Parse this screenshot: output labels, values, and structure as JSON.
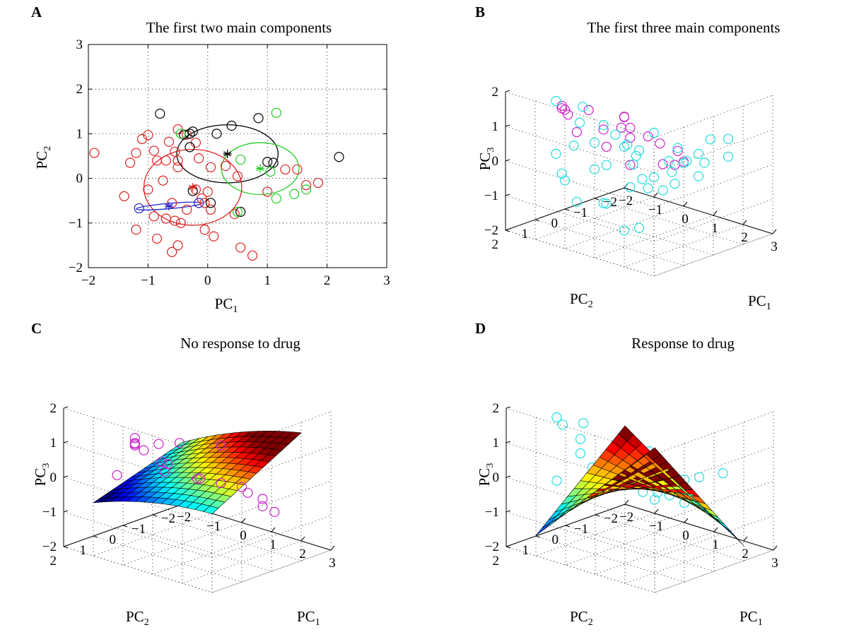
{
  "colors": {
    "red": "#dd2222",
    "black": "#000000",
    "green": "#22cc22",
    "blue": "#2222cc",
    "cyan": "#22dddd",
    "magenta": "#cc22cc"
  },
  "chart_data": [
    {
      "panel": "A",
      "type": "scatter",
      "title": "The first two main components",
      "xlabel": {
        "main": "PC",
        "sub": "1"
      },
      "ylabel": {
        "main": "PC",
        "sub": "2"
      },
      "xlim": [
        -2,
        3
      ],
      "ylim": [
        -2,
        3
      ],
      "xticks": [
        "−2",
        "−1",
        "0",
        "1",
        "2",
        "3"
      ],
      "yticks": [
        "−2",
        "−1",
        "0",
        "1",
        "2",
        "3"
      ],
      "grid": true,
      "series": [
        {
          "name": "red",
          "marker": "circle",
          "color": "#dd2222",
          "points": [
            [
              -1.9,
              0.57
            ],
            [
              -1.3,
              0.35
            ],
            [
              -1.2,
              0.57
            ],
            [
              -1.1,
              0.88
            ],
            [
              -1.0,
              0.97
            ],
            [
              -0.65,
              0.82
            ],
            [
              -0.5,
              1.1
            ],
            [
              -0.35,
              0.98
            ],
            [
              -0.55,
              0.6
            ],
            [
              -0.2,
              0.8
            ],
            [
              -0.9,
              0.62
            ],
            [
              -0.85,
              0.4
            ],
            [
              -0.7,
              0.4
            ],
            [
              -0.5,
              0.4
            ],
            [
              -0.15,
              0.45
            ],
            [
              -0.5,
              0.25
            ],
            [
              0.05,
              0.25
            ],
            [
              0.3,
              0.28
            ],
            [
              0.5,
              0.05
            ],
            [
              -1.4,
              -0.4
            ],
            [
              -1.0,
              -0.25
            ],
            [
              -0.75,
              -0.05
            ],
            [
              -0.6,
              -0.55
            ],
            [
              -0.35,
              -0.7
            ],
            [
              -0.1,
              -0.45
            ],
            [
              0.0,
              -0.3
            ],
            [
              -0.2,
              -0.25
            ],
            [
              0.05,
              -0.7
            ],
            [
              -1.2,
              -1.15
            ],
            [
              -0.9,
              -0.85
            ],
            [
              -0.7,
              -0.9
            ],
            [
              -0.55,
              -0.95
            ],
            [
              -0.85,
              -1.35
            ],
            [
              -0.45,
              -1.0
            ],
            [
              -0.05,
              -1.15
            ],
            [
              -0.6,
              -1.65
            ],
            [
              -0.5,
              -1.5
            ],
            [
              0.1,
              -1.3
            ],
            [
              0.55,
              -1.55
            ],
            [
              0.75,
              -1.73
            ],
            [
              1.0,
              -0.3
            ],
            [
              1.3,
              0.2
            ],
            [
              1.5,
              0.2
            ],
            [
              1.65,
              -0.15
            ],
            [
              1.85,
              -0.1
            ],
            [
              0.45,
              -0.8
            ],
            [
              -0.05,
              -0.55
            ]
          ]
        },
        {
          "name": "black",
          "marker": "circle",
          "color": "#000000",
          "points": [
            [
              -0.8,
              1.45
            ],
            [
              -0.25,
              1.05
            ],
            [
              -0.4,
              0.98
            ],
            [
              -0.3,
              1.0
            ],
            [
              -0.3,
              0.7
            ],
            [
              0.15,
              1.0
            ],
            [
              0.4,
              1.18
            ],
            [
              0.85,
              1.35
            ],
            [
              2.2,
              0.48
            ],
            [
              1.0,
              0.37
            ],
            [
              1.1,
              0.35
            ],
            [
              0.55,
              -0.75
            ],
            [
              -0.25,
              -0.28
            ],
            [
              0.05,
              -0.55
            ]
          ]
        },
        {
          "name": "green",
          "marker": "circle",
          "color": "#22cc22",
          "points": [
            [
              1.15,
              1.47
            ],
            [
              -0.45,
              1.0
            ],
            [
              0.55,
              0.42
            ],
            [
              1.05,
              0.15
            ],
            [
              0.5,
              -0.75
            ],
            [
              1.15,
              -0.45
            ],
            [
              1.45,
              -0.35
            ],
            [
              1.65,
              -0.25
            ]
          ]
        },
        {
          "name": "blue",
          "marker": "circle",
          "color": "#2222cc",
          "points": [
            [
              -1.15,
              -0.67
            ],
            [
              -0.15,
              -0.55
            ]
          ]
        }
      ],
      "centroids": [
        {
          "name": "black",
          "color": "#000000",
          "x": 0.33,
          "y": 0.55
        },
        {
          "name": "green",
          "color": "#22cc22",
          "x": 0.88,
          "y": 0.22
        },
        {
          "name": "red",
          "color": "#dd2222",
          "x": -0.25,
          "y": -0.2
        },
        {
          "name": "blue",
          "color": "#2222cc",
          "x": -0.65,
          "y": -0.62
        }
      ],
      "ellipses": [
        {
          "name": "black",
          "color": "#000000",
          "cx": 0.33,
          "cy": 0.55,
          "rx": 0.85,
          "ry": 0.65,
          "angle_deg": 0
        },
        {
          "name": "green",
          "color": "#22cc22",
          "cx": 0.88,
          "cy": 0.22,
          "rx": 0.65,
          "ry": 0.58,
          "angle_deg": 0
        },
        {
          "name": "red",
          "color": "#dd2222",
          "cx": -0.25,
          "cy": -0.2,
          "rx": 0.82,
          "ry": 0.85,
          "angle_deg": 0
        },
        {
          "name": "blue",
          "color": "#2222cc",
          "cx": -0.65,
          "cy": -0.62,
          "rx": 0.55,
          "ry": 0.06,
          "angle_deg": 5
        }
      ]
    },
    {
      "panel": "B",
      "type": "scatter3d",
      "title": "The first three main components",
      "xlabel": {
        "main": "PC",
        "sub": "1"
      },
      "ylabel": {
        "main": "PC",
        "sub": "2"
      },
      "zlabel": {
        "main": "PC",
        "sub": "3"
      },
      "xlim": [
        -2,
        3
      ],
      "ylim": [
        -2,
        2
      ],
      "zlim": [
        -2,
        2
      ],
      "xticks": [
        "−2",
        "−1",
        "0",
        "1",
        "2",
        "3"
      ],
      "yticks": [
        "−2",
        "−1",
        "0",
        "1",
        "2"
      ],
      "zticks": [
        "−2",
        "−1",
        "0",
        "1",
        "2"
      ],
      "series": [
        {
          "name": "magenta",
          "color": "#cc22cc",
          "points": [
            [
              -1.5,
              0.6,
              1.3
            ],
            [
              -1.2,
              0.9,
              1.4
            ],
            [
              -0.9,
              1.1,
              1.5
            ],
            [
              -0.6,
              1.3,
              1.5
            ],
            [
              0.2,
              0.2,
              1.3
            ],
            [
              0.5,
              0.3,
              1.1
            ],
            [
              -1.5,
              -0.3,
              0.9
            ],
            [
              -0.6,
              0.1,
              0.7
            ],
            [
              -0.7,
              -0.7,
              0.8
            ],
            [
              -0.9,
              -0.8,
              0.4
            ],
            [
              -0.4,
              -0.6,
              0.3
            ],
            [
              0.2,
              -0.6,
              0.5
            ],
            [
              0.6,
              -0.6,
              0.4
            ],
            [
              1.0,
              -0.3,
              0.0
            ],
            [
              0.9,
              -0.8,
              -0.2
            ],
            [
              1.3,
              -0.5,
              0.4
            ],
            [
              -1.3,
              0.3,
              0.5
            ],
            [
              0.1,
              -0.1,
              -0.2
            ],
            [
              1.6,
              -0.4,
              0.2
            ],
            [
              -0.2,
              0.4,
              0.4
            ]
          ]
        },
        {
          "name": "cyan",
          "color": "#22dddd",
          "points": [
            [
              -1.5,
              0.8,
              1.5
            ],
            [
              -1.6,
              -0.2,
              1.0
            ],
            [
              -1.2,
              0.3,
              0.8
            ],
            [
              -1.8,
              0.5,
              -0.2
            ],
            [
              -1.2,
              0.5,
              0.2
            ],
            [
              -0.8,
              0.2,
              0.3
            ],
            [
              -0.3,
              0.0,
              0.6
            ],
            [
              -0.1,
              -0.2,
              0.3
            ],
            [
              0.1,
              -0.3,
              0.0
            ],
            [
              0.3,
              0.0,
              -0.1
            ],
            [
              0.5,
              -0.1,
              -0.5
            ],
            [
              0.8,
              -0.2,
              -0.4
            ],
            [
              1.2,
              -0.4,
              -0.2
            ],
            [
              1.5,
              -0.5,
              0.1
            ],
            [
              1.8,
              -0.3,
              0.3
            ],
            [
              2.2,
              -0.5,
              0.3
            ],
            [
              2.5,
              -1.0,
              0.4
            ],
            [
              2.0,
              -0.9,
              0.8
            ],
            [
              1.0,
              0.0,
              1.0
            ],
            [
              0.3,
              0.3,
              0.5
            ],
            [
              -0.5,
              0.5,
              -0.3
            ],
            [
              -1.0,
              1.0,
              -0.6
            ],
            [
              -1.4,
              0.7,
              -0.6
            ],
            [
              0.4,
              1.0,
              -0.9
            ],
            [
              -0.2,
              0.5,
              -1.2
            ],
            [
              0.0,
              -0.2,
              -0.9
            ],
            [
              1.1,
              -0.2,
              -0.7
            ],
            [
              0.6,
              -0.9,
              -0.2
            ],
            [
              -0.3,
              -0.8,
              -0.1
            ],
            [
              0.9,
              0.1,
              -0.6
            ],
            [
              1.5,
              -0.2,
              -0.4
            ],
            [
              1.9,
              -0.6,
              -0.2
            ],
            [
              0.2,
              0.8,
              0.1
            ],
            [
              -0.4,
              1.2,
              -1.0
            ],
            [
              0.8,
              -1.0,
              0.2
            ],
            [
              1.3,
              -1.2,
              0.1
            ],
            [
              0.5,
              0.5,
              -1.8
            ],
            [
              1.0,
              0.5,
              -1.6
            ],
            [
              -1.0,
              -0.3,
              0.6
            ],
            [
              2.3,
              -1.2,
              0.8
            ]
          ]
        }
      ]
    },
    {
      "panel": "C",
      "type": "surface",
      "title": "No response to drug",
      "xlabel": {
        "main": "PC",
        "sub": "1"
      },
      "ylabel": {
        "main": "PC",
        "sub": "2"
      },
      "zlabel": {
        "main": "PC",
        "sub": "3"
      },
      "xlim": [
        -2,
        3
      ],
      "ylim": [
        -2,
        2
      ],
      "zlim": [
        -2,
        2
      ],
      "xticks": [
        "−2",
        "−1",
        "0",
        "1",
        "2",
        "3"
      ],
      "yticks": [
        "−2",
        "−1",
        "0",
        "1",
        "2"
      ],
      "zticks": [
        "−2",
        "−1",
        "0",
        "1",
        "2"
      ],
      "surface": {
        "x_range": [
          -1.5,
          2.5
        ],
        "y_range": [
          -1.5,
          1.5
        ],
        "grid": 14,
        "colormap": "jet",
        "model": "z = 0.2 + 0.3*x - 0.35*y - 0.05*x*y - 0.04*x*x",
        "clim": [
          -0.6,
          1.0
        ]
      },
      "series": [
        {
          "name": "magenta",
          "color": "#cc22cc",
          "points": [
            [
              -1.5,
              0.7,
              -0.2
            ],
            [
              -1.3,
              0.3,
              0.8
            ],
            [
              -1.0,
              0.6,
              0.8
            ],
            [
              -0.7,
              0.9,
              1.0
            ],
            [
              -0.4,
              1.2,
              1.1
            ],
            [
              0.0,
              1.3,
              1.1
            ],
            [
              0.3,
              1.1,
              1.3
            ],
            [
              0.8,
              0.9,
              1.4
            ],
            [
              1.5,
              0.2,
              1.3
            ],
            [
              -1.2,
              -0.5,
              -0.1
            ],
            [
              -0.8,
              -0.3,
              0.0
            ],
            [
              0.0,
              -0.6,
              -0.3
            ],
            [
              0.6,
              -0.7,
              -0.3
            ],
            [
              1.0,
              -1.0,
              -0.4
            ],
            [
              1.4,
              -0.8,
              -0.4
            ],
            [
              1.8,
              -0.9,
              -0.5
            ],
            [
              2.0,
              -0.7,
              -0.6
            ],
            [
              0.3,
              -0.2,
              -0.1
            ],
            [
              -0.3,
              0.3,
              0.1
            ],
            [
              1.8,
              -1.3,
              -1.0
            ]
          ]
        }
      ]
    },
    {
      "panel": "D",
      "type": "surface",
      "title": "Response to drug",
      "xlabel": {
        "main": "PC",
        "sub": "1"
      },
      "ylabel": {
        "main": "PC",
        "sub": "2"
      },
      "zlabel": {
        "main": "PC",
        "sub": "3"
      },
      "xlim": [
        -2,
        3
      ],
      "ylim": [
        -2,
        2
      ],
      "zlim": [
        -2,
        2
      ],
      "xticks": [
        "−2",
        "−1",
        "0",
        "1",
        "2",
        "3"
      ],
      "yticks": [
        "−2",
        "−1",
        "0",
        "1",
        "2"
      ],
      "zticks": [
        "−2",
        "−1",
        "0",
        "1",
        "2"
      ],
      "surface": {
        "x_range": [
          -1.5,
          2.5
        ],
        "y_range": [
          -1.5,
          1.5
        ],
        "grid": 14,
        "colormap": "jet",
        "model": "z = 0.5*x*y - 0.35 + 0.15*x",
        "clim": [
          -2.0,
          0.4
        ]
      },
      "series": [
        {
          "name": "cyan",
          "color": "#22dddd",
          "points": [
            [
              -1.5,
              0.8,
              1.5
            ],
            [
              -1.2,
              0.9,
              1.4
            ],
            [
              -1.6,
              -0.2,
              1.0
            ],
            [
              -1.2,
              0.3,
              0.8
            ],
            [
              -1.0,
              0.5,
              0.5
            ],
            [
              -0.6,
              0.5,
              0.2
            ],
            [
              -0.2,
              0.2,
              0.0
            ],
            [
              0.2,
              0.0,
              -0.1
            ],
            [
              0.5,
              -0.1,
              -0.4
            ],
            [
              0.8,
              -0.3,
              -0.4
            ],
            [
              1.2,
              -0.5,
              -0.2
            ],
            [
              1.5,
              -0.5,
              0.1
            ],
            [
              2.0,
              -0.5,
              0.3
            ],
            [
              2.4,
              -0.9,
              0.4
            ],
            [
              1.0,
              0.2,
              1.0
            ],
            [
              0.4,
              -0.6,
              -0.8
            ],
            [
              1.1,
              -0.9,
              -0.8
            ],
            [
              -1.8,
              0.5,
              -0.5
            ],
            [
              1.6,
              -0.8,
              -0.6
            ],
            [
              0.8,
              -0.7,
              -0.6
            ]
          ]
        }
      ]
    }
  ]
}
